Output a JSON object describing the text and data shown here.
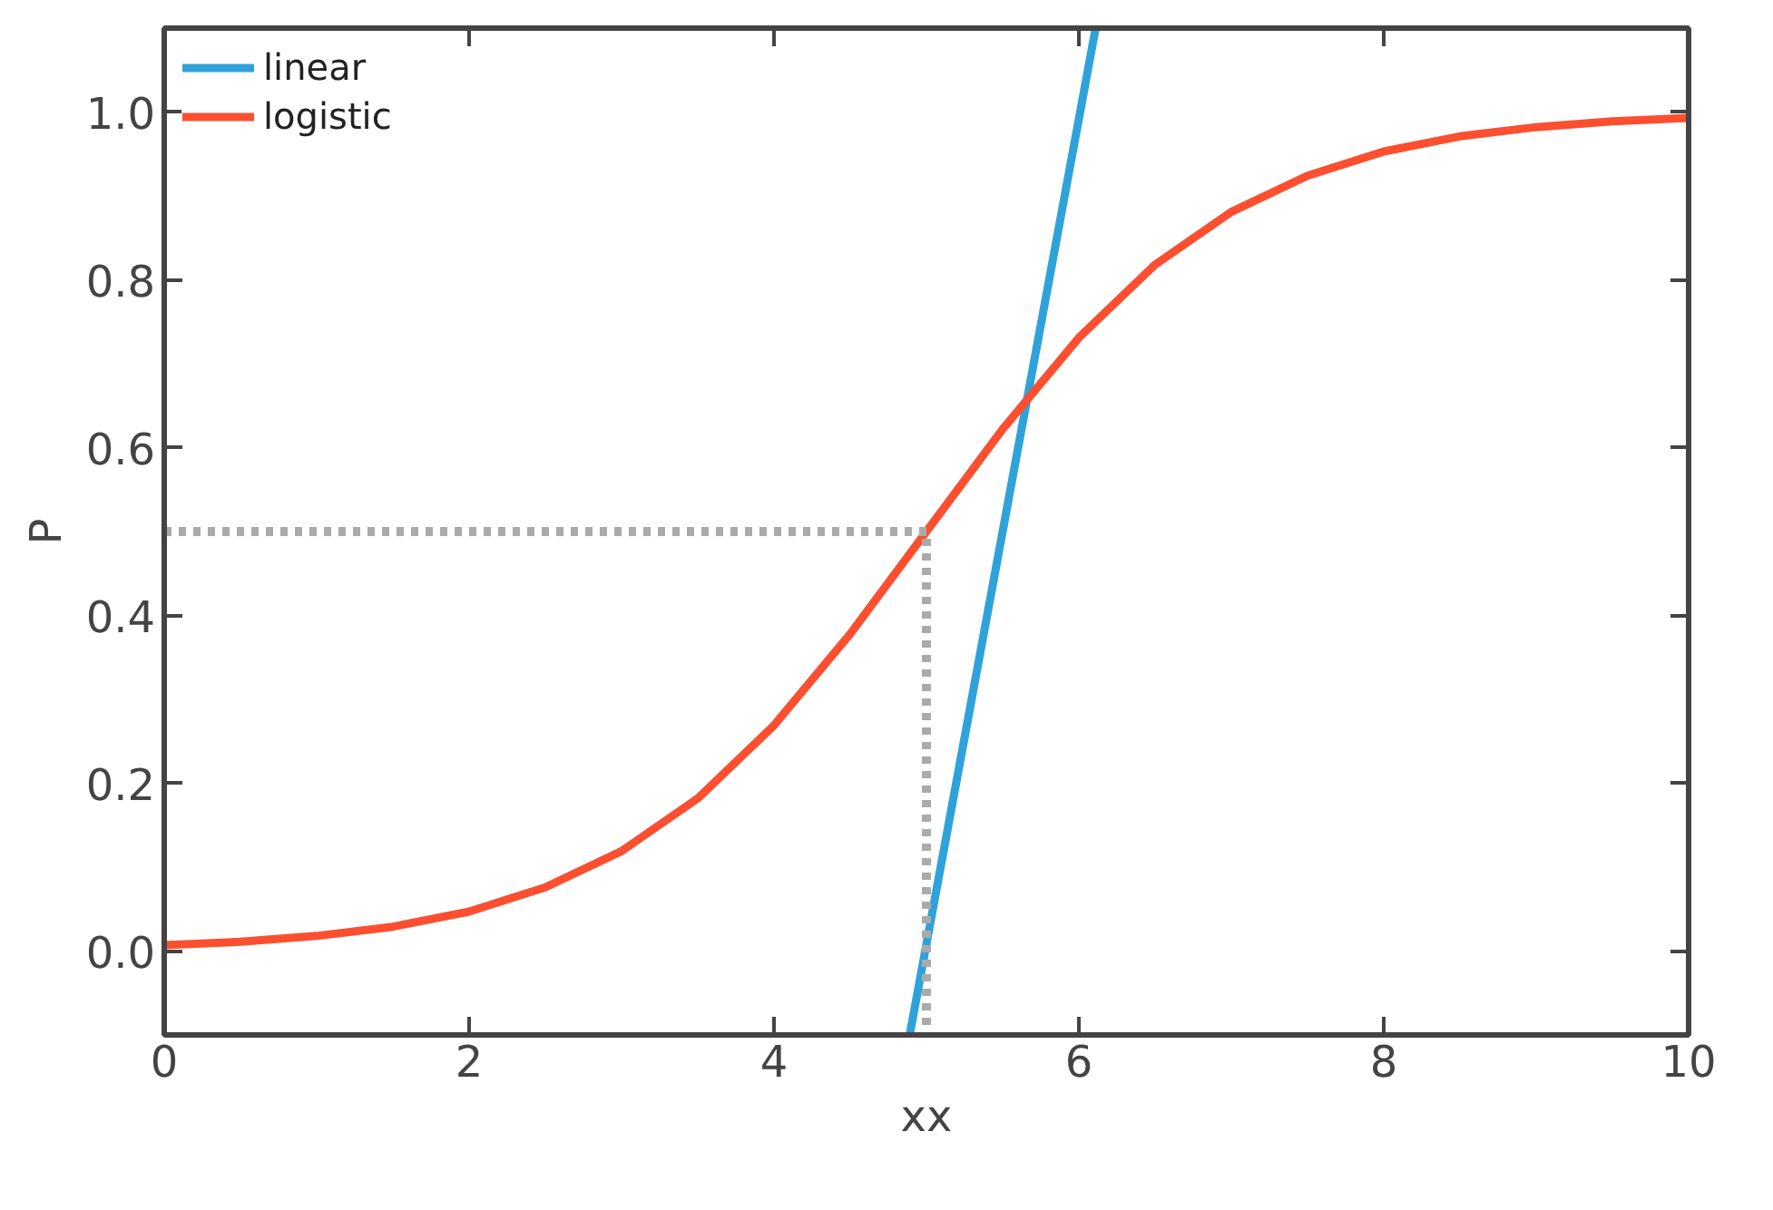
{
  "chart_data": {
    "type": "line",
    "xlabel": "xx",
    "ylabel": "P",
    "xlim": [
      0,
      10
    ],
    "ylim": [
      -0.1,
      1.1
    ],
    "xticks": [
      0,
      2,
      4,
      6,
      8,
      10
    ],
    "yticks": [
      {
        "value": 0,
        "label": "0.0"
      },
      0.2,
      0.4,
      0.6,
      0.8,
      {
        "value": 1,
        "label": "1.0"
      }
    ],
    "grid": false,
    "legend": "top left",
    "marker": "none",
    "line_style": "solid",
    "series": [
      {
        "name": "linear",
        "color": "#30a2da",
        "x": [
          4.89,
          6.11
        ],
        "values": [
          -0.1,
          1.1
        ]
      },
      {
        "name": "logistic",
        "color": "#fc4f30",
        "x": [
          0,
          0.5,
          1,
          1.5,
          2,
          2.5,
          3,
          3.5,
          4,
          4.5,
          5,
          5.5,
          6,
          6.5,
          7,
          7.5,
          8,
          8.5,
          9,
          9.5,
          10
        ],
        "values": [
          0.007,
          0.011,
          0.018,
          0.029,
          0.047,
          0.076,
          0.119,
          0.182,
          0.269,
          0.378,
          0.5,
          0.622,
          0.731,
          0.818,
          0.881,
          0.924,
          0.953,
          0.971,
          0.982,
          0.989,
          0.993
        ]
      },
      {
        "color": "#aaaaaa",
        "line_style": "dashed",
        "x": [
          0,
          5,
          5
        ],
        "values": [
          0.5,
          0.5,
          -0.1
        ]
      }
    ]
  }
}
